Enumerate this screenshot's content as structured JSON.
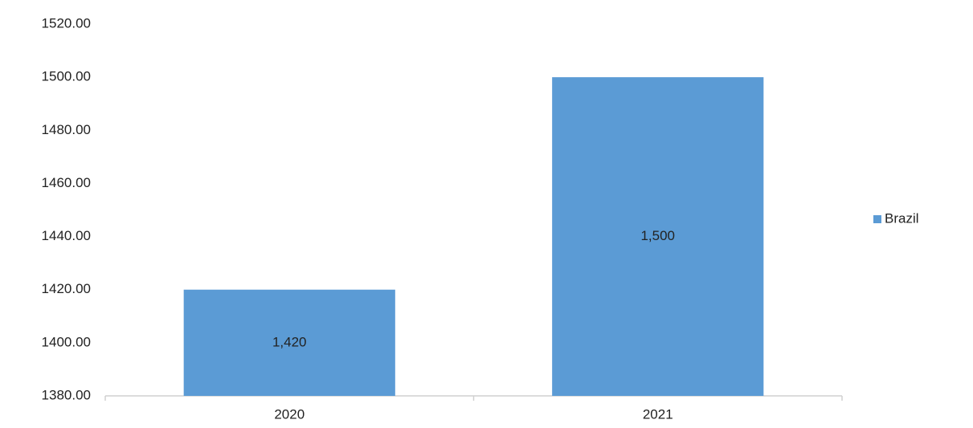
{
  "chart_data": {
    "type": "bar",
    "categories": [
      "2020",
      "2021"
    ],
    "series": [
      {
        "name": "Brazil",
        "color": "#5b9bd5",
        "values": [
          1420,
          1500
        ],
        "value_labels": [
          "1,420",
          "1,500"
        ]
      }
    ],
    "ylim": [
      1380,
      1520
    ],
    "yticks": [
      {
        "value": 1380,
        "label": "1380.00"
      },
      {
        "value": 1400,
        "label": "1400.00"
      },
      {
        "value": 1420,
        "label": "1420.00"
      },
      {
        "value": 1440,
        "label": "1440.00"
      },
      {
        "value": 1460,
        "label": "1460.00"
      },
      {
        "value": 1480,
        "label": "1480.00"
      },
      {
        "value": 1500,
        "label": "1500.00"
      },
      {
        "value": 1520,
        "label": "1520.00"
      }
    ],
    "grid": false,
    "legend": "right"
  }
}
